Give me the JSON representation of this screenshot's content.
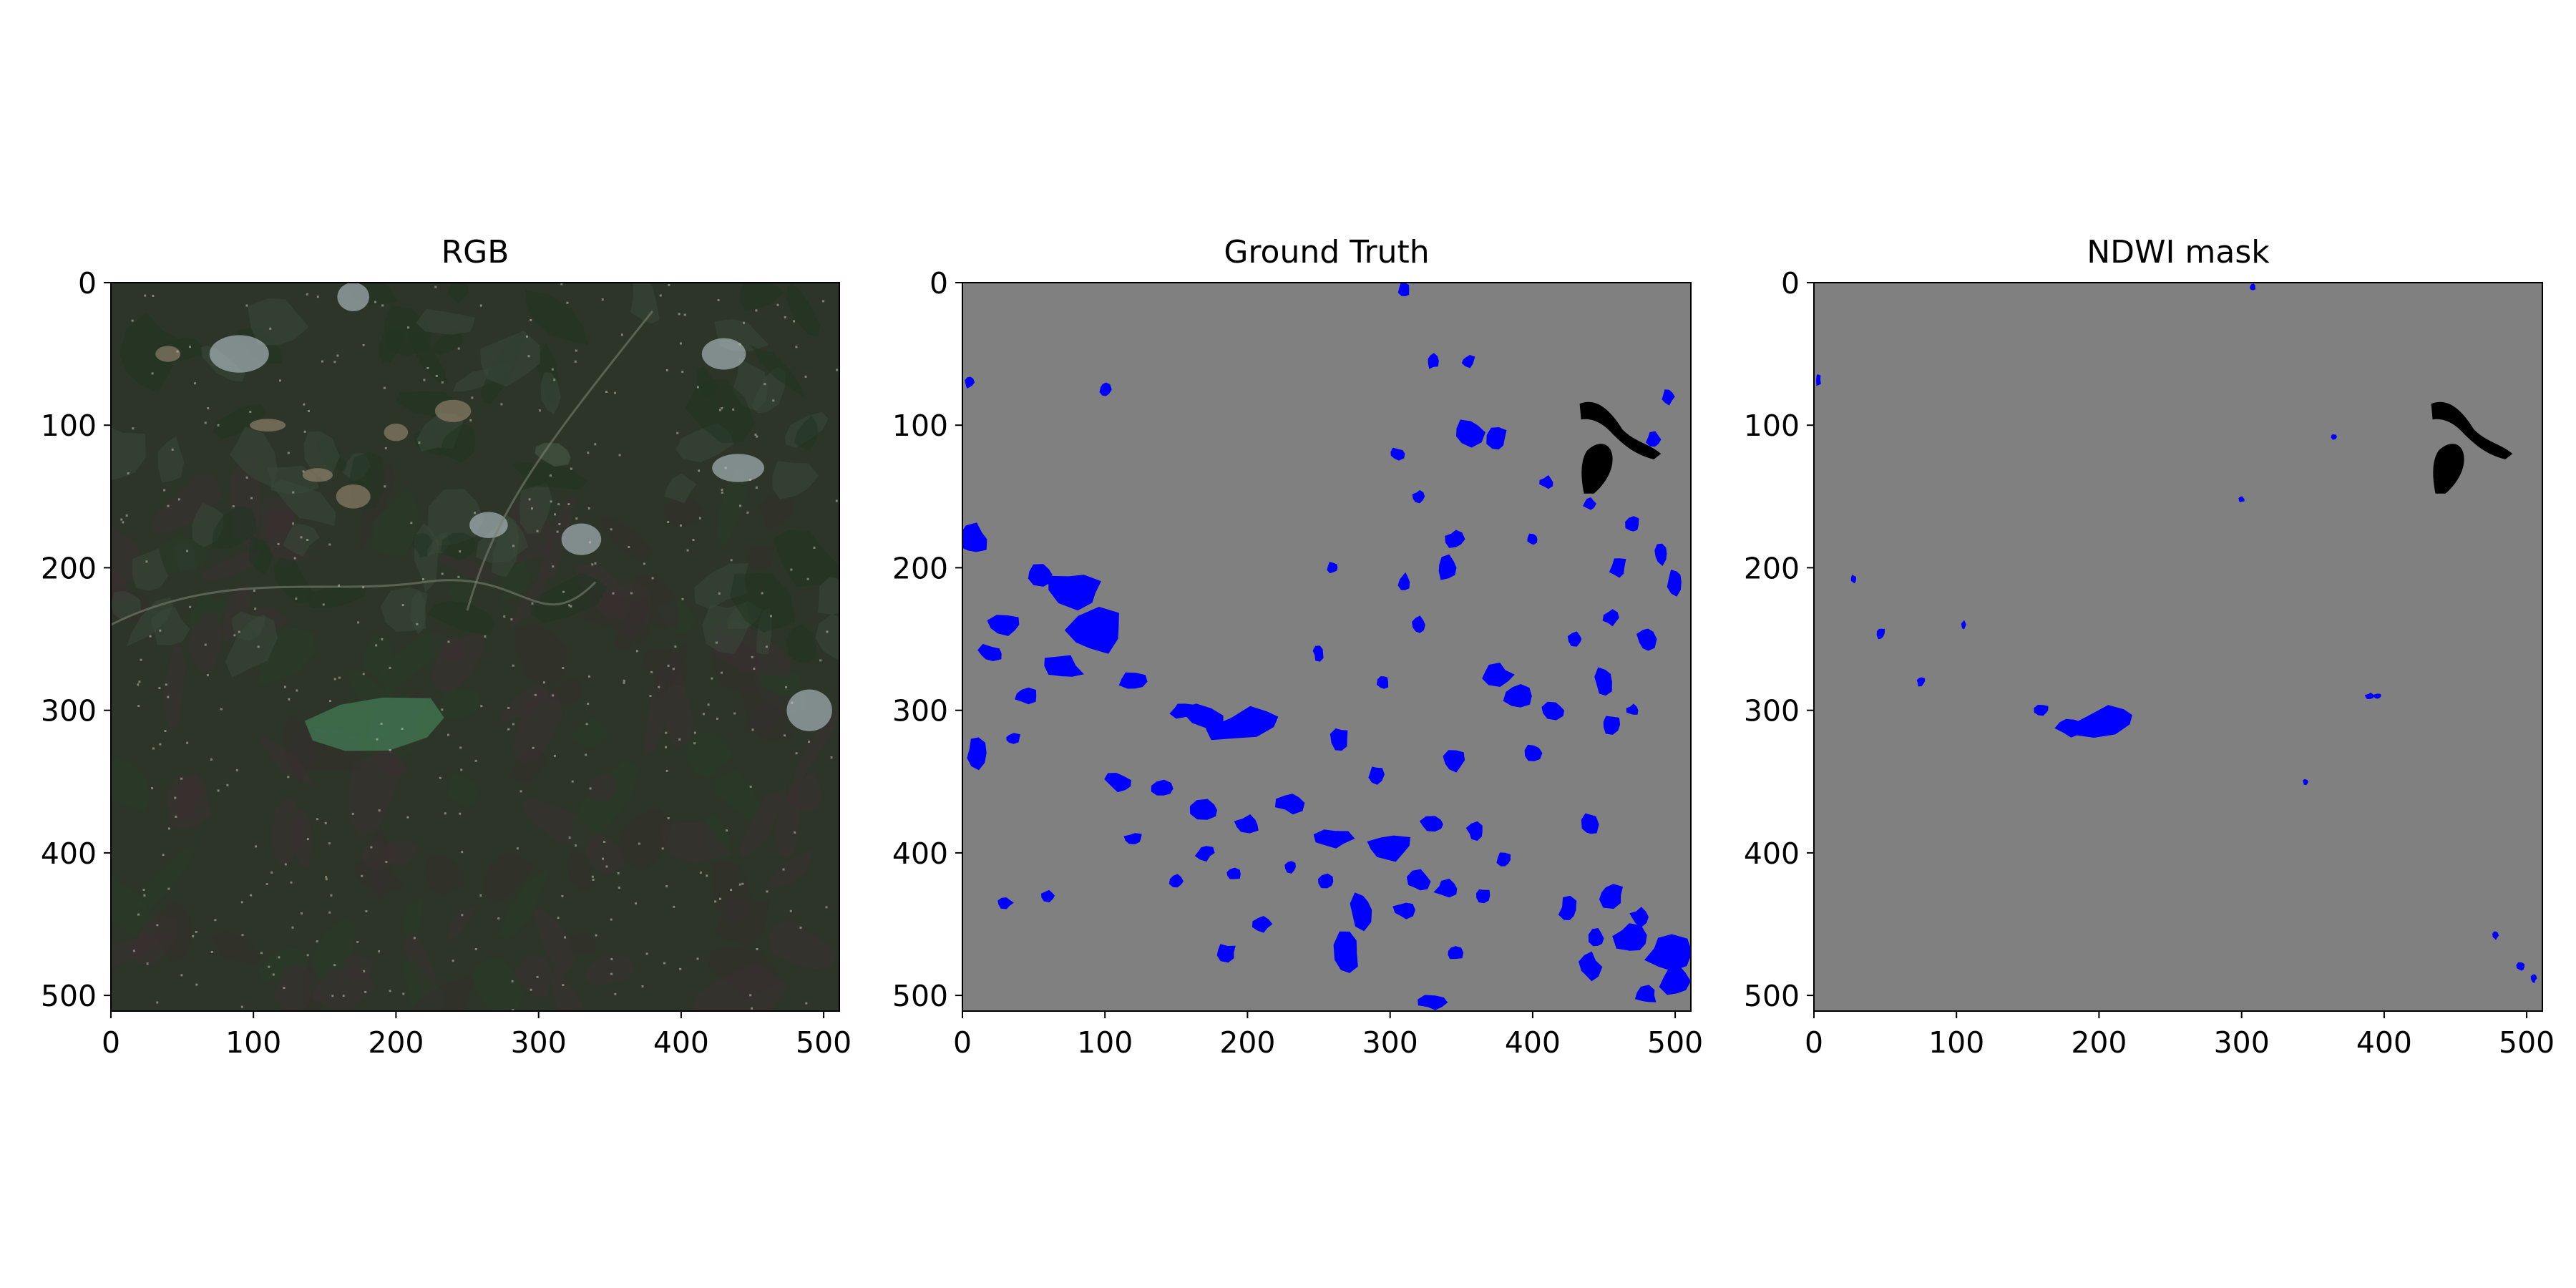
{
  "figure": {
    "panels": [
      {
        "key": "rgb",
        "title": "RGB",
        "kind": "rgb-image",
        "xticks": [
          "0",
          "100",
          "200",
          "300",
          "400",
          "500"
        ],
        "yticks": [
          "0",
          "100",
          "200",
          "300",
          "400",
          "500"
        ]
      },
      {
        "key": "gt",
        "title": "Ground Truth",
        "kind": "water-mask",
        "xticks": [
          "0",
          "100",
          "200",
          "300",
          "400",
          "500"
        ],
        "yticks": [
          "0",
          "100",
          "200",
          "300",
          "400",
          "500"
        ]
      },
      {
        "key": "ndwi",
        "title": "NDWI mask",
        "kind": "water-mask",
        "xticks": [
          "0",
          "100",
          "200",
          "300",
          "400",
          "500"
        ],
        "yticks": [
          "0",
          "100",
          "200",
          "300",
          "400",
          "500"
        ]
      }
    ]
  },
  "colors": {
    "background": "#808080",
    "water": "#0000ff",
    "nodata": "#000000",
    "rgb_base": "#2c3527",
    "rgb_dark_field": "#3a2f32",
    "rgb_green_field": "#3f6e4c",
    "rgb_cloud": "#c9d6e0"
  },
  "image_extent": {
    "x": [
      0,
      511
    ],
    "y": [
      0,
      511
    ]
  }
}
